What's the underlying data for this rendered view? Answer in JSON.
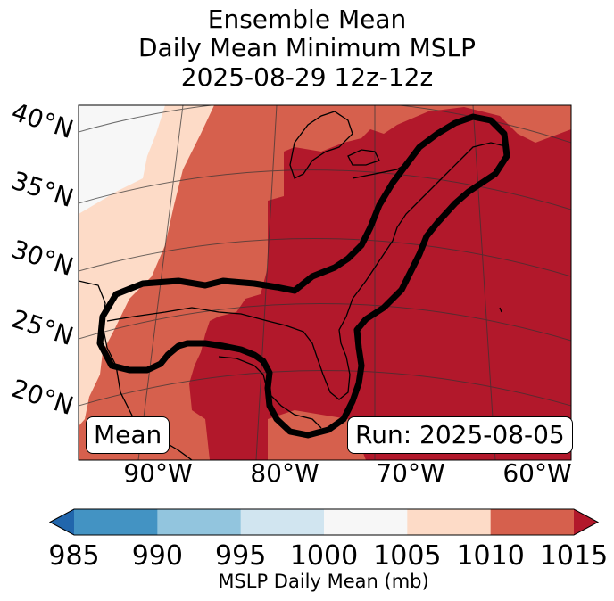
{
  "title": {
    "line1": "Ensemble Mean",
    "line2": "Daily Mean Minimum MSLP",
    "line3": "2025-08-29 12z-12z"
  },
  "map": {
    "lat_labels": [
      "40°N",
      "35°N",
      "30°N",
      "25°N",
      "20°N"
    ],
    "lon_labels": [
      "90°W",
      "80°W",
      "70°W",
      "60°W"
    ],
    "mean_label": "Mean",
    "run_label": "Run: 2025-08-05"
  },
  "colorbar": {
    "ticks": [
      "985",
      "990",
      "995",
      "1000",
      "1005",
      "1010",
      "1015"
    ],
    "title": "MSLP Daily Mean (mb)",
    "colors": {
      "below": "#2166ac",
      "c985_990": "#4393c3",
      "c990_995": "#92c5de",
      "c995_1000": "#d1e5f0",
      "c1000_1005": "#f7f7f7",
      "c1005_1010": "#fddbc7",
      "c1010_1015": "#d6604d",
      "above": "#b2182b"
    }
  }
}
